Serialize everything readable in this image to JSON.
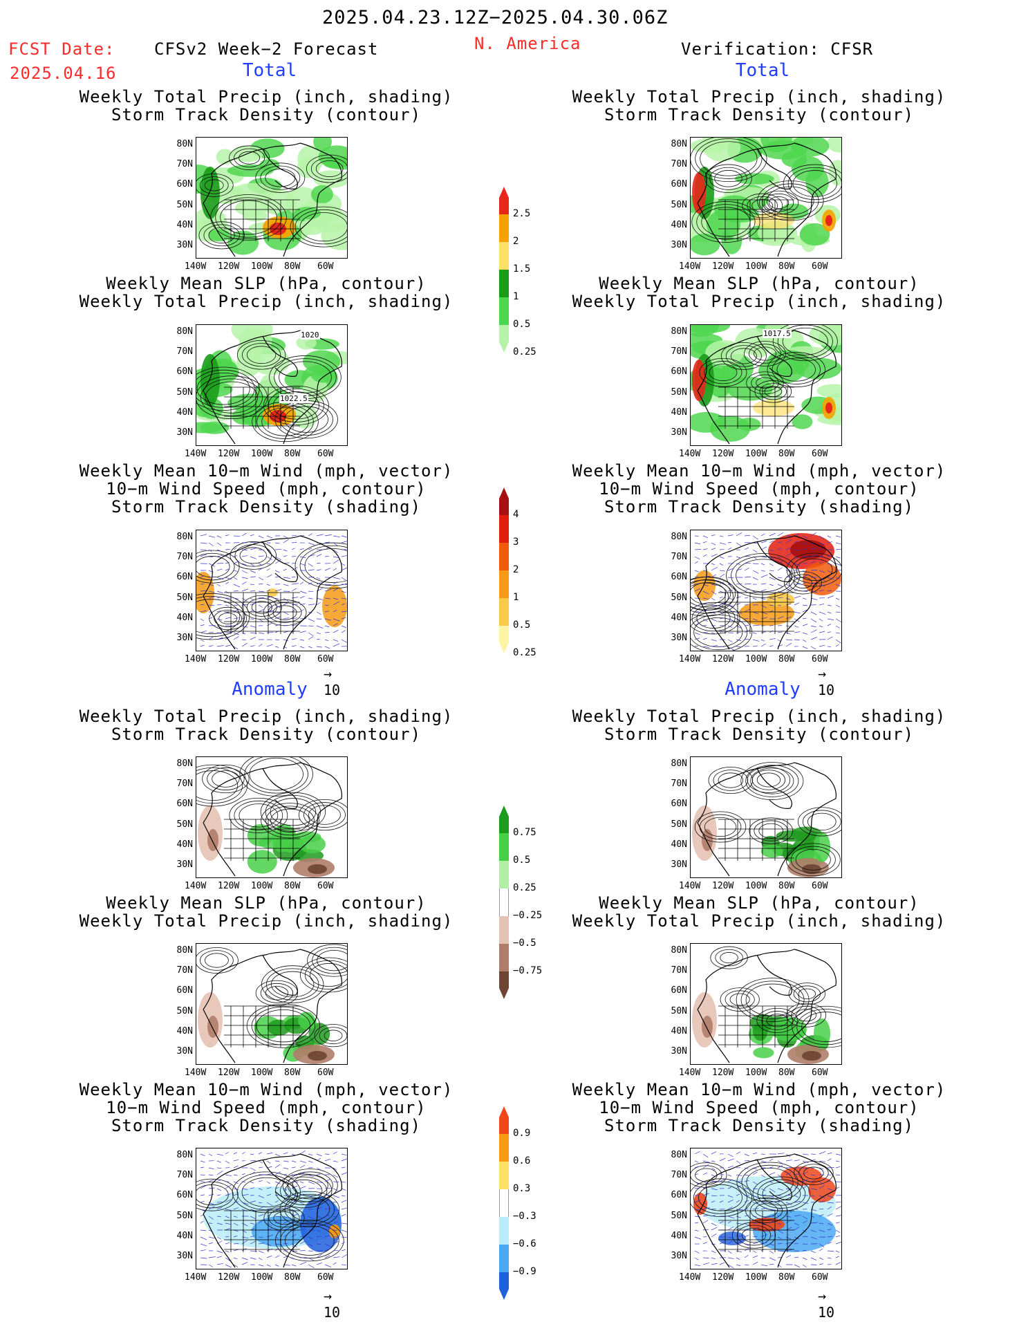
{
  "header": {
    "date_range": "2025.04.23.12Z−2025.04.30.06Z",
    "fcst_label": "FCST Date:",
    "fcst_date": "2025.04.16",
    "model": "CFSv2 Week−2 Forecast",
    "region": "N. America",
    "verification": "Verification: CFSR"
  },
  "sections": {
    "total": "Total",
    "anomaly": "Anomaly"
  },
  "titles": {
    "precip_storm": [
      "Weekly Total Precip (inch, shading)",
      "Storm Track Density (contour)"
    ],
    "slp_precip": [
      "Weekly Mean SLP (hPa, contour)",
      "Weekly Total Precip (inch, shading)"
    ],
    "wind_storm": [
      "Weekly Mean 10−m Wind (mph, vector)",
      "10−m Wind Speed (mph, contour)",
      "Storm Track Density (shading)"
    ]
  },
  "axes": {
    "lat_ticks": [
      "80N",
      "70N",
      "60N",
      "50N",
      "40N",
      "30N"
    ],
    "lon_ticks": [
      "140W",
      "120W",
      "100W",
      "80W",
      "60W"
    ]
  },
  "vector_ref": "10",
  "contour_labels": {
    "fcst_slp_1": "1020",
    "fcst_slp_2": "1022.5",
    "verif_slp_1": "1017.5"
  },
  "colorbars": {
    "total_precip": {
      "labels": [
        "2.5",
        "2",
        "1.5",
        "1",
        "0.5",
        "0.25"
      ],
      "colors": [
        "#e8261a",
        "#f5a300",
        "#ffe066",
        "#1a9c1a",
        "#4fd64f",
        "#b6f3a8"
      ]
    },
    "total_storm": {
      "labels": [
        "4",
        "3",
        "2",
        "1",
        "0.5",
        "0.25"
      ],
      "colors": [
        "#a51010",
        "#e21d0e",
        "#f15a0a",
        "#f59a14",
        "#fbc94a",
        "#fff3a6"
      ]
    },
    "anom_precip": {
      "labels": [
        "0.75",
        "0.5",
        "0.25",
        "−0.25",
        "−0.5",
        "−0.75"
      ],
      "colors": [
        "#1e9b1e",
        "#48cf48",
        "#b2efa4",
        "#ffffff",
        "#e4c2b4",
        "#b07d6a",
        "#6e4432"
      ]
    },
    "anom_storm": {
      "labels": [
        "0.9",
        "0.6",
        "0.3",
        "−0.3",
        "−0.6",
        "−0.9"
      ],
      "colors": [
        "#f0461a",
        "#f79a14",
        "#ffe066",
        "#ffffff",
        "#b9ecf8",
        "#4ba8f2",
        "#1e5fdc"
      ]
    }
  }
}
